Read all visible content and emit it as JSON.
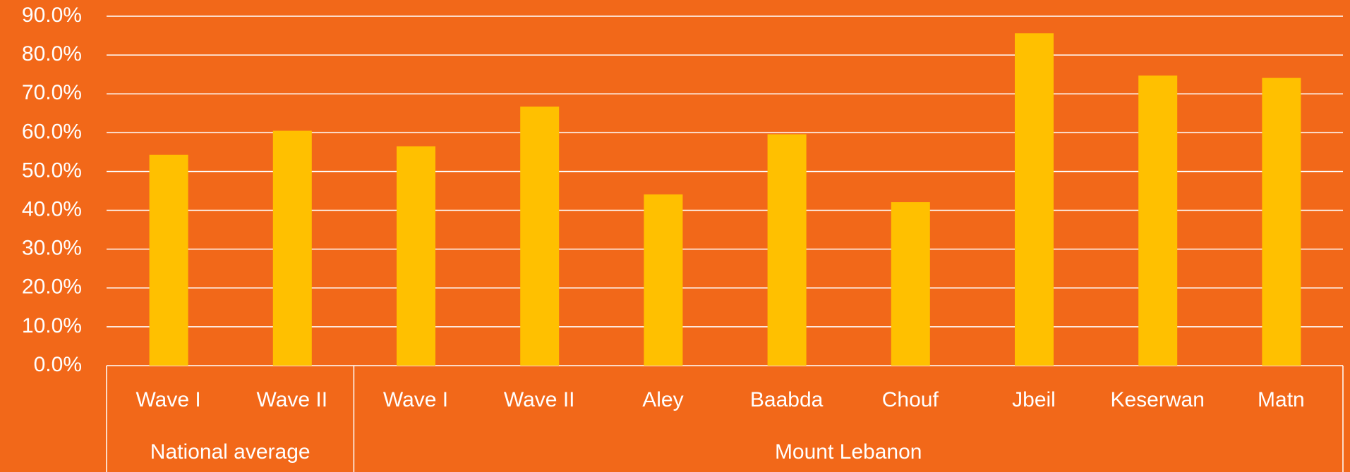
{
  "chart_data": {
    "type": "bar",
    "categories": [
      "Wave I",
      "Wave II",
      "Wave I",
      "Wave II",
      "Aley",
      "Baabda",
      "Chouf",
      "Jbeil",
      "Keserwan",
      "Matn"
    ],
    "groups": [
      {
        "name": "National average",
        "span": 2
      },
      {
        "name": "Mount Lebanon",
        "span": 8
      }
    ],
    "values": [
      54.3,
      60.5,
      56.5,
      66.7,
      44.1,
      59.6,
      42.1,
      85.6,
      74.7,
      74.1
    ],
    "color": "#ffc000",
    "ylim": [
      0,
      90
    ],
    "yticks": [
      {
        "value": 0,
        "label": "0.0%"
      },
      {
        "value": 10,
        "label": "10.0%"
      },
      {
        "value": 20,
        "label": "20.0%"
      },
      {
        "value": 30,
        "label": "30.0%"
      },
      {
        "value": 40,
        "label": "40.0%"
      },
      {
        "value": 50,
        "label": "50.0%"
      },
      {
        "value": 60,
        "label": "60.0%"
      },
      {
        "value": 70,
        "label": "70.0%"
      },
      {
        "value": 80,
        "label": "80.0%"
      },
      {
        "value": 90,
        "label": "90.0%"
      }
    ],
    "grid": true
  }
}
